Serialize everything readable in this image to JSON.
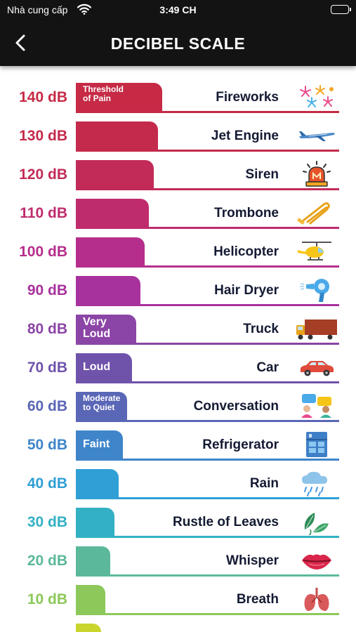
{
  "status_bar": {
    "carrier": "Nhà cung cấp",
    "time": "3:49 CH"
  },
  "nav": {
    "title": "DECIBEL SCALE"
  },
  "levels": [
    {
      "db": "140 dB",
      "source": "Fireworks",
      "band": "Threshold of Pain",
      "color": "#c62a45",
      "icon": "fireworks-icon"
    },
    {
      "db": "130 dB",
      "source": "Jet Engine",
      "band": "",
      "color": "#c42a4b",
      "icon": "airplane-icon"
    },
    {
      "db": "120 dB",
      "source": "Siren",
      "band": "",
      "color": "#c22b57",
      "icon": "siren-icon"
    },
    {
      "db": "110 dB",
      "source": "Trombone",
      "band": "",
      "color": "#bf2c6d",
      "icon": "trombone-icon"
    },
    {
      "db": "100 dB",
      "source": "Helicopter",
      "band": "",
      "color": "#b62e8c",
      "icon": "helicopter-icon"
    },
    {
      "db": "90 dB",
      "source": "Hair Dryer",
      "band": "",
      "color": "#a8329d",
      "icon": "hair-dryer-icon"
    },
    {
      "db": "80 dB",
      "source": "Truck",
      "band": "Very Loud",
      "color": "#8b45a6",
      "icon": "truck-icon"
    },
    {
      "db": "70 dB",
      "source": "Car",
      "band": "Loud",
      "color": "#6f53ab",
      "icon": "car-icon"
    },
    {
      "db": "60 dB",
      "source": "Conversation",
      "band": "Moderate to Quiet",
      "color": "#5a66b6",
      "icon": "conversation-icon"
    },
    {
      "db": "50 dB",
      "source": "Refrigerator",
      "band": "Faint",
      "color": "#3f85ca",
      "icon": "refrigerator-icon"
    },
    {
      "db": "40 dB",
      "source": "Rain",
      "band": "",
      "color": "#2f9fd6",
      "icon": "rain-cloud-icon"
    },
    {
      "db": "30 dB",
      "source": "Rustle of Leaves",
      "band": "",
      "color": "#34b0c4",
      "icon": "leaves-icon"
    },
    {
      "db": "20 dB",
      "source": "Whisper",
      "band": "",
      "color": "#5cb89b",
      "icon": "lips-icon"
    },
    {
      "db": "10 dB",
      "source": "Breath",
      "band": "",
      "color": "#8cc85a",
      "icon": "lungs-icon"
    },
    {
      "db": "",
      "source": "",
      "band": "",
      "color": "#c9d42c",
      "icon": ""
    }
  ]
}
